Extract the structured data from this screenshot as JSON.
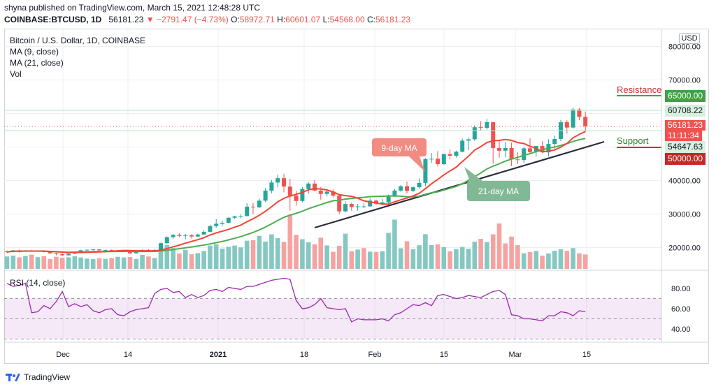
{
  "header": {
    "published_by": "shyna published on TradingView.com, March 15, 2021 12:48:28 UTC",
    "symbol": "COINBASE:BTCUSD, 1D",
    "last": "56181.23",
    "change_arrow": "▼",
    "change": "−2791.47 (−4.73%)",
    "o_label": "O:",
    "o_value": "58972.71",
    "h_label": "H:",
    "h_value": "60601.07",
    "l_label": "L:",
    "l_value": "54568.00",
    "c_label": "C:",
    "c_value": "56181.23"
  },
  "legend": {
    "title": "Bitcoin / U.S. Dollar, 1D, COINBASE",
    "ma9": "MA (9, close)",
    "ma21": "MA (21, close)",
    "vol": "Vol",
    "rsi": "RSI (14, close)"
  },
  "currency_button": "USD",
  "annotations": {
    "ma9_label": "9-day MA",
    "ma21_label": "21-day MA",
    "resistance": "Resistance",
    "support": "Support"
  },
  "price_tags": {
    "resistance_level": "65000.00",
    "high_level": "60708.22",
    "last_price": "56181.23",
    "countdown": "11:11:34",
    "ma_level": "54647.63",
    "support_level": "50000.00"
  },
  "footer": {
    "brand": "TradingView"
  },
  "colors": {
    "up": "#26a69a",
    "down": "#ef5350",
    "ma9": "#f44336",
    "ma21": "#4caf50",
    "rsi": "#9c27b0",
    "resistance": "#43a047",
    "support": "#d32f2f"
  },
  "chart_data": {
    "type": "candlestick",
    "title": "Bitcoin / U.S. Dollar, 1D, COINBASE",
    "price_axis": {
      "ticks": [
        "80000.00",
        "70000.00",
        "60000.00",
        "50000.00",
        "40000.00",
        "30000.00",
        "20000.00"
      ]
    },
    "rsi_axis": {
      "ticks": [
        "80.00",
        "60.00",
        "40.00"
      ]
    },
    "x_ticks": [
      "Dec",
      "14",
      "2021",
      "18",
      "Feb",
      "15",
      "Mar",
      "15"
    ],
    "candles": [
      [
        18850,
        19150,
        18300,
        18700
      ],
      [
        18700,
        19300,
        18500,
        19150
      ],
      [
        19150,
        19400,
        18500,
        18900
      ],
      [
        18900,
        19200,
        18700,
        19100
      ],
      [
        19100,
        19300,
        18800,
        18950
      ],
      [
        18950,
        19150,
        18700,
        19000
      ],
      [
        19000,
        19200,
        18550,
        18700
      ],
      [
        18700,
        18850,
        18100,
        18300
      ],
      [
        18300,
        18500,
        17700,
        18050
      ],
      [
        18050,
        18300,
        17500,
        17700
      ],
      [
        17700,
        18250,
        17600,
        18200
      ],
      [
        18200,
        18900,
        18100,
        18800
      ],
      [
        18800,
        19350,
        18700,
        19200
      ],
      [
        19200,
        19450,
        19000,
        19350
      ],
      [
        19350,
        19600,
        19100,
        19450
      ],
      [
        19450,
        19500,
        19000,
        19150
      ],
      [
        19150,
        19400,
        18900,
        19250
      ],
      [
        19250,
        19400,
        18800,
        18950
      ],
      [
        18950,
        19150,
        18750,
        19050
      ],
      [
        19050,
        19300,
        18900,
        19150
      ],
      [
        19150,
        19250,
        18100,
        18300
      ],
      [
        18300,
        18800,
        18200,
        18700
      ],
      [
        18700,
        19400,
        18600,
        19300
      ],
      [
        19300,
        19500,
        19050,
        19200
      ],
      [
        19200,
        19450,
        18900,
        19300
      ],
      [
        19300,
        21500,
        19200,
        21300
      ],
      [
        21300,
        23300,
        21200,
        23100
      ],
      [
        23100,
        24100,
        22600,
        23800
      ],
      [
        23800,
        24300,
        23100,
        23500
      ],
      [
        23500,
        24100,
        22500,
        23700
      ],
      [
        23700,
        24000,
        22700,
        23300
      ],
      [
        23300,
        24100,
        23200,
        23900
      ],
      [
        23900,
        25200,
        23700,
        24700
      ],
      [
        24700,
        26800,
        24500,
        26400
      ],
      [
        26400,
        28500,
        25900,
        27100
      ],
      [
        27100,
        28000,
        26500,
        27400
      ],
      [
        27400,
        29000,
        27200,
        28900
      ],
      [
        28900,
        29500,
        28500,
        29300
      ],
      [
        29300,
        29900,
        28700,
        29400
      ],
      [
        29400,
        33200,
        29300,
        32200
      ],
      [
        32200,
        33300,
        30000,
        32000
      ],
      [
        32000,
        34600,
        31800,
        34000
      ],
      [
        34000,
        37800,
        33500,
        37000
      ],
      [
        37000,
        40100,
        36200,
        39400
      ],
      [
        39400,
        41800,
        38000,
        40700
      ],
      [
        40700,
        42000,
        36500,
        38200
      ],
      [
        38200,
        40500,
        31000,
        35500
      ],
      [
        35500,
        37000,
        32500,
        33900
      ],
      [
        33900,
        38000,
        33500,
        37500
      ],
      [
        37500,
        39500,
        36000,
        39100
      ],
      [
        39100,
        40100,
        36800,
        37000
      ],
      [
        37000,
        38000,
        34300,
        36000
      ],
      [
        36000,
        37500,
        35200,
        36700
      ],
      [
        36700,
        37300,
        35000,
        35500
      ],
      [
        35500,
        35800,
        30000,
        30800
      ],
      [
        30800,
        33800,
        30500,
        33000
      ],
      [
        33000,
        33400,
        31000,
        32100
      ],
      [
        32100,
        33000,
        31000,
        32300
      ],
      [
        32300,
        33200,
        31800,
        32300
      ],
      [
        32300,
        34800,
        32100,
        34000
      ],
      [
        34000,
        34300,
        32800,
        33100
      ],
      [
        33100,
        34500,
        32700,
        33500
      ],
      [
        33500,
        35800,
        33100,
        35500
      ],
      [
        35500,
        37500,
        35100,
        37000
      ],
      [
        37000,
        38700,
        36600,
        38300
      ],
      [
        38300,
        39700,
        36100,
        36900
      ],
      [
        36900,
        38300,
        36500,
        38000
      ],
      [
        38000,
        40600,
        37600,
        39300
      ],
      [
        39300,
        46700,
        38300,
        46400
      ],
      [
        46400,
        48200,
        45300,
        46500
      ],
      [
        46500,
        48800,
        44200,
        44900
      ],
      [
        44900,
        48000,
        44700,
        47900
      ],
      [
        47900,
        49300,
        46300,
        47400
      ],
      [
        47400,
        48900,
        46800,
        48600
      ],
      [
        48600,
        52500,
        48400,
        51900
      ],
      [
        51900,
        52700,
        49000,
        52300
      ],
      [
        52300,
        56500,
        51800,
        55900
      ],
      [
        55900,
        57700,
        55000,
        55700
      ],
      [
        55700,
        58400,
        55200,
        57400
      ],
      [
        57400,
        57500,
        45000,
        49700
      ],
      [
        49700,
        52000,
        46800,
        48900
      ],
      [
        48900,
        51500,
        47000,
        49700
      ],
      [
        49700,
        51300,
        44300,
        46300
      ],
      [
        46300,
        48400,
        44900,
        46100
      ],
      [
        46100,
        50000,
        45200,
        49600
      ],
      [
        49600,
        52600,
        47800,
        48500
      ],
      [
        48500,
        50100,
        47100,
        50300
      ],
      [
        50300,
        51800,
        48200,
        48400
      ],
      [
        48400,
        52300,
        47100,
        50900
      ],
      [
        50900,
        53400,
        49500,
        52400
      ],
      [
        52400,
        58100,
        51800,
        57400
      ],
      [
        57400,
        58000,
        54000,
        55800
      ],
      [
        55800,
        61800,
        55500,
        61200
      ],
      [
        61200,
        61700,
        58000,
        59000
      ],
      [
        59000,
        60600,
        54568,
        56181
      ]
    ],
    "volume": [
      [
        7400,
        "up"
      ],
      [
        7900,
        "up"
      ],
      [
        6900,
        "down"
      ],
      [
        7700,
        "up"
      ],
      [
        8500,
        "down"
      ],
      [
        7000,
        "up"
      ],
      [
        7600,
        "down"
      ],
      [
        5900,
        "down"
      ],
      [
        7200,
        "down"
      ],
      [
        6700,
        "down"
      ],
      [
        6900,
        "up"
      ],
      [
        7500,
        "up"
      ],
      [
        6800,
        "up"
      ],
      [
        6100,
        "up"
      ],
      [
        5800,
        "up"
      ],
      [
        6400,
        "down"
      ],
      [
        6000,
        "up"
      ],
      [
        6500,
        "down"
      ],
      [
        7200,
        "up"
      ],
      [
        6800,
        "up"
      ],
      [
        7100,
        "down"
      ],
      [
        5900,
        "up"
      ],
      [
        8400,
        "up"
      ],
      [
        7400,
        "down"
      ],
      [
        6500,
        "up"
      ],
      [
        10800,
        "up"
      ],
      [
        14300,
        "up"
      ],
      [
        12400,
        "up"
      ],
      [
        9200,
        "down"
      ],
      [
        11200,
        "up"
      ],
      [
        8700,
        "down"
      ],
      [
        9400,
        "up"
      ],
      [
        10700,
        "up"
      ],
      [
        13900,
        "up"
      ],
      [
        14700,
        "up"
      ],
      [
        12100,
        "up"
      ],
      [
        13200,
        "up"
      ],
      [
        13900,
        "up"
      ],
      [
        12800,
        "up"
      ],
      [
        16800,
        "up"
      ],
      [
        17200,
        "down"
      ],
      [
        19700,
        "up"
      ],
      [
        16300,
        "up"
      ],
      [
        20600,
        "up"
      ],
      [
        18300,
        "up"
      ],
      [
        16100,
        "down"
      ],
      [
        32000,
        "down"
      ],
      [
        20300,
        "down"
      ],
      [
        17700,
        "up"
      ],
      [
        15900,
        "up"
      ],
      [
        14700,
        "down"
      ],
      [
        18600,
        "down"
      ],
      [
        14000,
        "up"
      ],
      [
        10200,
        "down"
      ],
      [
        13800,
        "down"
      ],
      [
        21000,
        "up"
      ],
      [
        10500,
        "down"
      ],
      [
        11500,
        "up"
      ],
      [
        12400,
        "down"
      ],
      [
        10300,
        "up"
      ],
      [
        10100,
        "down"
      ],
      [
        10500,
        "up"
      ],
      [
        21500,
        "up"
      ],
      [
        29400,
        "up"
      ],
      [
        12300,
        "up"
      ],
      [
        16500,
        "down"
      ],
      [
        11700,
        "up"
      ],
      [
        14100,
        "up"
      ],
      [
        20700,
        "up"
      ],
      [
        14200,
        "up"
      ],
      [
        14600,
        "down"
      ],
      [
        13000,
        "up"
      ],
      [
        10500,
        "down"
      ],
      [
        11800,
        "up"
      ],
      [
        13100,
        "up"
      ],
      [
        12000,
        "up"
      ],
      [
        16200,
        "up"
      ],
      [
        17900,
        "down"
      ],
      [
        16000,
        "up"
      ],
      [
        20600,
        "down"
      ],
      [
        27100,
        "down"
      ],
      [
        15200,
        "down"
      ],
      [
        19300,
        "down"
      ],
      [
        14200,
        "down"
      ],
      [
        9300,
        "up"
      ],
      [
        10100,
        "down"
      ],
      [
        10700,
        "up"
      ],
      [
        7900,
        "down"
      ],
      [
        9200,
        "up"
      ],
      [
        10800,
        "up"
      ],
      [
        11700,
        "up"
      ],
      [
        10800,
        "down"
      ],
      [
        12400,
        "up"
      ],
      [
        9300,
        "down"
      ],
      [
        8600,
        "down"
      ]
    ],
    "rsi": [
      85,
      82,
      83,
      85,
      56,
      57,
      63,
      60,
      67,
      77,
      62,
      65,
      62,
      64,
      58,
      56,
      59,
      60,
      54,
      53,
      57,
      59,
      60,
      61,
      75,
      79,
      80,
      76,
      77,
      71,
      74,
      71,
      73,
      78,
      79,
      77,
      81,
      80,
      79,
      82,
      82,
      84,
      86,
      88,
      89,
      90,
      89,
      68,
      60,
      61,
      64,
      70,
      61,
      60,
      59,
      60,
      47,
      50,
      49,
      49,
      49,
      50,
      48,
      54,
      56,
      60,
      64,
      63,
      66,
      63,
      73,
      74,
      72,
      70,
      71,
      73,
      72,
      71,
      74,
      77,
      78,
      74,
      54,
      53,
      50,
      50,
      49,
      48,
      53,
      53,
      57,
      56,
      53,
      58,
      57
    ]
  }
}
